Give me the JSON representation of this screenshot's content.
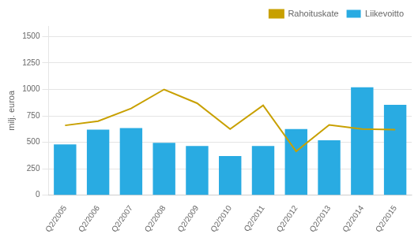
{
  "chart_data": {
    "type": "bar",
    "ylabel": "milj. euroa",
    "categories": [
      "Q2/2005",
      "Q2/2006",
      "Q2/2007",
      "Q2/2008",
      "Q2/2009",
      "Q2/2010",
      "Q2/2011",
      "Q2/2012",
      "Q2/2013",
      "Q2/2014",
      "Q2/2015"
    ],
    "series": [
      {
        "name": "Liikevoitto",
        "type": "bar",
        "color": "#29ABE2",
        "values": [
          480,
          620,
          635,
          495,
          465,
          370,
          465,
          625,
          520,
          1020,
          855
        ]
      },
      {
        "name": "Rahoituskate",
        "type": "line",
        "color": "#C8A000",
        "values": [
          660,
          700,
          820,
          1000,
          870,
          625,
          850,
          415,
          665,
          625,
          620
        ]
      }
    ],
    "ylim": [
      0,
      1600
    ],
    "yticks": [
      0,
      250,
      500,
      750,
      1000,
      1250,
      1500
    ],
    "grid": true,
    "legend": "upper right"
  }
}
